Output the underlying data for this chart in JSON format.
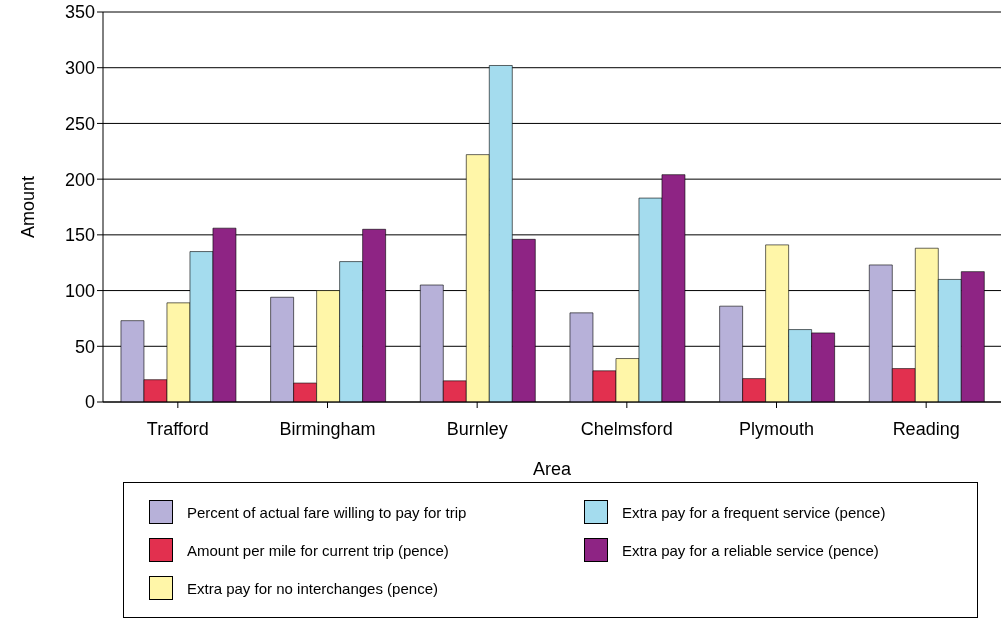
{
  "chart_data": {
    "type": "bar",
    "xlabel": "Area",
    "ylabel": "Amount",
    "categories": [
      "Trafford",
      "Birmingham",
      "Burnley",
      "Chelmsford",
      "Plymouth",
      "Reading"
    ],
    "series": [
      {
        "name": "Percent of actual fare willing to pay for trip",
        "color": "#b7b1d9",
        "values": [
          73,
          94,
          105,
          80,
          86,
          123
        ]
      },
      {
        "name": "Amount per mile for current trip (pence)",
        "color": "#e2304f",
        "values": [
          20,
          17,
          19,
          28,
          21,
          30
        ]
      },
      {
        "name": "Extra pay for no interchanges (pence)",
        "color": "#fff6a8",
        "values": [
          89,
          100,
          222,
          39,
          141,
          138
        ]
      },
      {
        "name": "Extra pay for a frequent service (pence)",
        "color": "#a4dcee",
        "values": [
          135,
          126,
          302,
          183,
          65,
          110
        ]
      },
      {
        "name": "Extra pay for a reliable service (pence)",
        "color": "#8e2484",
        "values": [
          156,
          155,
          146,
          204,
          62,
          117
        ]
      }
    ],
    "ylim": [
      0,
      350
    ],
    "yticks": [
      0,
      50,
      100,
      150,
      200,
      250,
      300,
      350
    ],
    "grid": "y",
    "legend": "bottom"
  }
}
